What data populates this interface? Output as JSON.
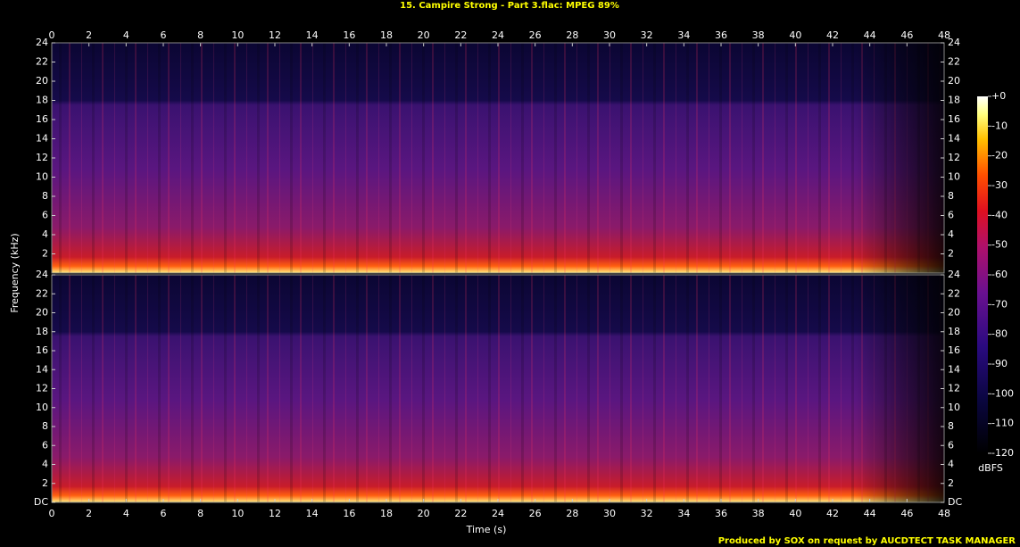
{
  "chart_data": {
    "type": "spectrogram",
    "title": "15. Campire Strong - Part 3.flac: MPEG 89%",
    "x_label": "Time (s)",
    "y_label": "Frequency (kHz)",
    "xlim": [
      0,
      48
    ],
    "xticks": [
      0,
      2,
      4,
      6,
      8,
      10,
      12,
      14,
      16,
      18,
      20,
      22,
      24,
      26,
      28,
      30,
      32,
      34,
      36,
      38,
      40,
      42,
      44,
      46,
      48
    ],
    "channels": [
      {
        "ylim": [
          0,
          24
        ],
        "yticks": [
          2,
          4,
          6,
          8,
          10,
          12,
          14,
          16,
          18,
          20,
          22,
          24
        ]
      },
      {
        "ylim": [
          0,
          24
        ],
        "yticks": [
          {
            "value": 0,
            "label": "DC"
          },
          2,
          4,
          6,
          8,
          10,
          12,
          14,
          16,
          18,
          20,
          22,
          24
        ]
      }
    ],
    "colorbar": {
      "lim": [
        -120,
        0
      ],
      "ticks": [
        {
          "value": 0,
          "label": "+0"
        },
        -10,
        -20,
        -30,
        -40,
        -50,
        -60,
        -70,
        -80,
        -90,
        -100,
        -110,
        -120
      ],
      "label": "dBFS"
    },
    "footer": "Produced by SOX on request by AUCDTECT TASK MANAGER"
  }
}
